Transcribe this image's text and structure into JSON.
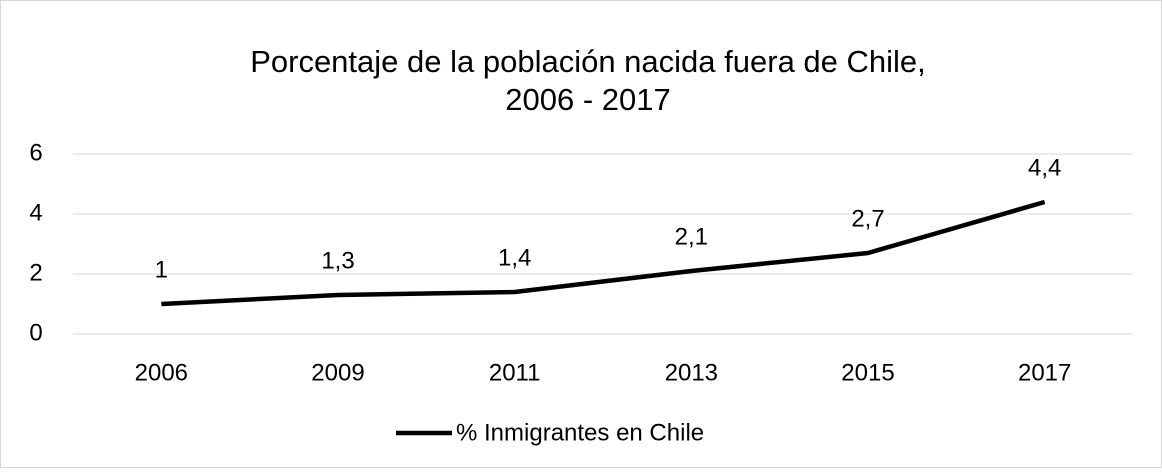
{
  "chart_data": {
    "type": "line",
    "title": [
      "Porcentaje de la población nacida fuera de Chile,",
      "2006 - 2017"
    ],
    "categories": [
      "2006",
      "2009",
      "2011",
      "2013",
      "2015",
      "2017"
    ],
    "series": [
      {
        "name": "% Inmigrantes en Chile",
        "color": "#000000",
        "values": [
          1,
          1.3,
          1.4,
          2.1,
          2.7,
          4.4
        ],
        "value_labels": [
          "1",
          "1,3",
          "1,4",
          "2,1",
          "2,7",
          "4,4"
        ]
      }
    ],
    "ylim": [
      0,
      6
    ],
    "yticks": [
      0,
      2,
      4,
      6
    ],
    "grid": true,
    "legend": "bottom"
  }
}
